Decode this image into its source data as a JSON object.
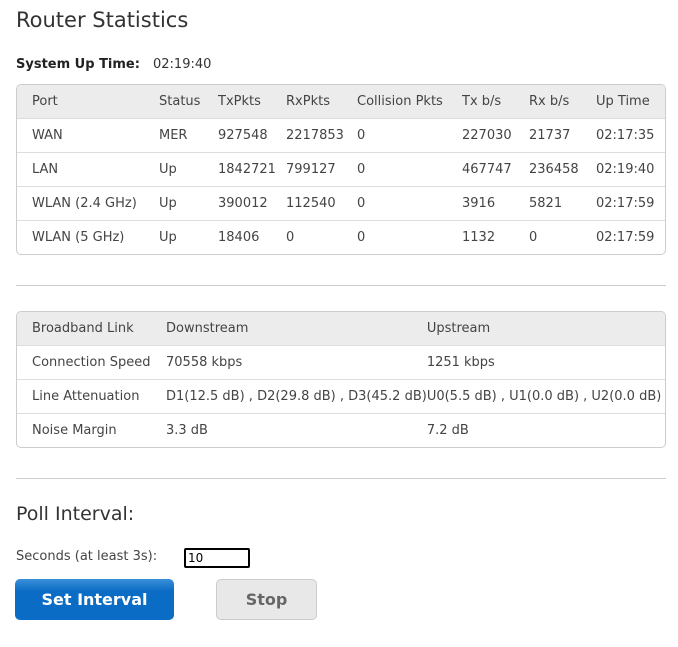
{
  "title": "Router Statistics",
  "uptime": {
    "label": "System Up Time:",
    "value": "02:19:40"
  },
  "ports": {
    "headers": [
      "Port",
      "Status",
      "TxPkts",
      "RxPkts",
      "Collision Pkts",
      "Tx b/s",
      "Rx b/s",
      "Up Time"
    ],
    "rows": [
      [
        "WAN",
        "MER",
        "927548",
        "2217853",
        "0",
        "227030",
        "21737",
        "02:17:35"
      ],
      [
        "LAN",
        "Up",
        "1842721",
        "799127",
        "0",
        "467747",
        "236458",
        "02:19:40"
      ],
      [
        "WLAN (2.4 GHz)",
        "Up",
        "390012",
        "112540",
        "0",
        "3916",
        "5821",
        "02:17:59"
      ],
      [
        "WLAN (5 GHz)",
        "Up",
        "18406",
        "0",
        "0",
        "1132",
        "0",
        "02:17:59"
      ]
    ]
  },
  "broadband": {
    "headers": [
      "Broadband Link",
      "Downstream",
      "Upstream"
    ],
    "rows": [
      [
        "Connection Speed",
        "70558 kbps",
        "1251 kbps"
      ],
      [
        "Line Attenuation",
        "D1(12.5 dB) , D2(29.8 dB) , D3(45.2 dB)",
        "U0(5.5 dB) , U1(0.0 dB) , U2(0.0 dB)"
      ],
      [
        "Noise Margin",
        "3.3 dB",
        "7.2 dB"
      ]
    ]
  },
  "poll": {
    "title": "Poll Interval:",
    "seconds_label": "Seconds (at least 3s):",
    "seconds_value": "10",
    "set_label": "Set Interval",
    "stop_label": "Stop"
  }
}
